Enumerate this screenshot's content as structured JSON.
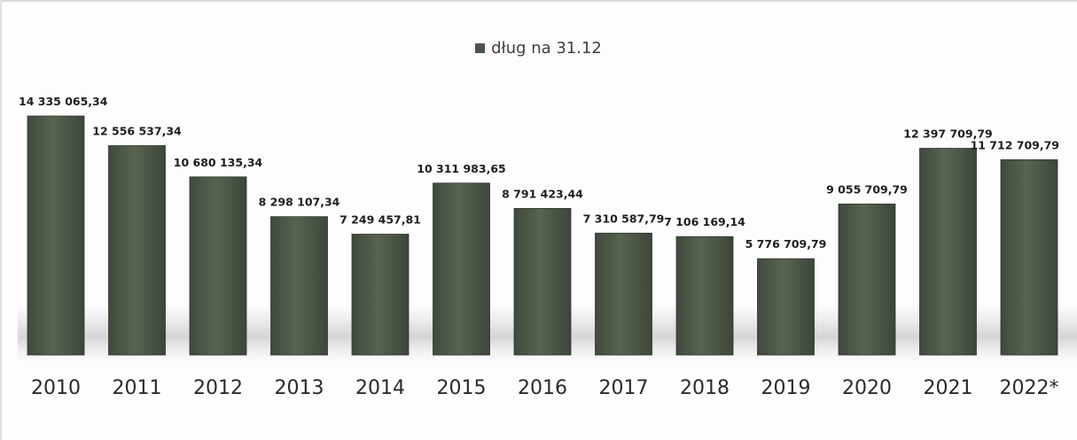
{
  "chart_data": {
    "type": "bar",
    "series": [
      {
        "name": "dług na 31.12",
        "values": [
          14335065.34,
          12556537.34,
          10680135.34,
          8298107.34,
          7249457.81,
          10311983.65,
          8791423.44,
          7310587.79,
          7106169.14,
          5776709.79,
          9055709.79,
          12397709.79,
          11712709.79
        ],
        "value_labels": [
          "14 335 065,34",
          "12 556 537,34",
          "10 680 135,34",
          "8 298 107,34",
          "7 249 457,81",
          "10 311 983,65",
          "8 791 423,44",
          "7 310 587,79",
          "7 106 169,14",
          "5 776 709,79",
          "9 055 709,79",
          "12 397 709,79",
          "11 712 709,79"
        ]
      }
    ],
    "categories": [
      "2010",
      "2011",
      "2012",
      "2013",
      "2014",
      "2015",
      "2016",
      "2017",
      "2018",
      "2019",
      "2020",
      "2021",
      "2022*"
    ],
    "legend": {
      "position": "top-center",
      "label": "dług na 31.12"
    },
    "ylim": [
      0,
      16000000
    ],
    "grid": false,
    "colors": {
      "bar": "#4a5549",
      "bar_highlight": "#6b7567"
    }
  }
}
